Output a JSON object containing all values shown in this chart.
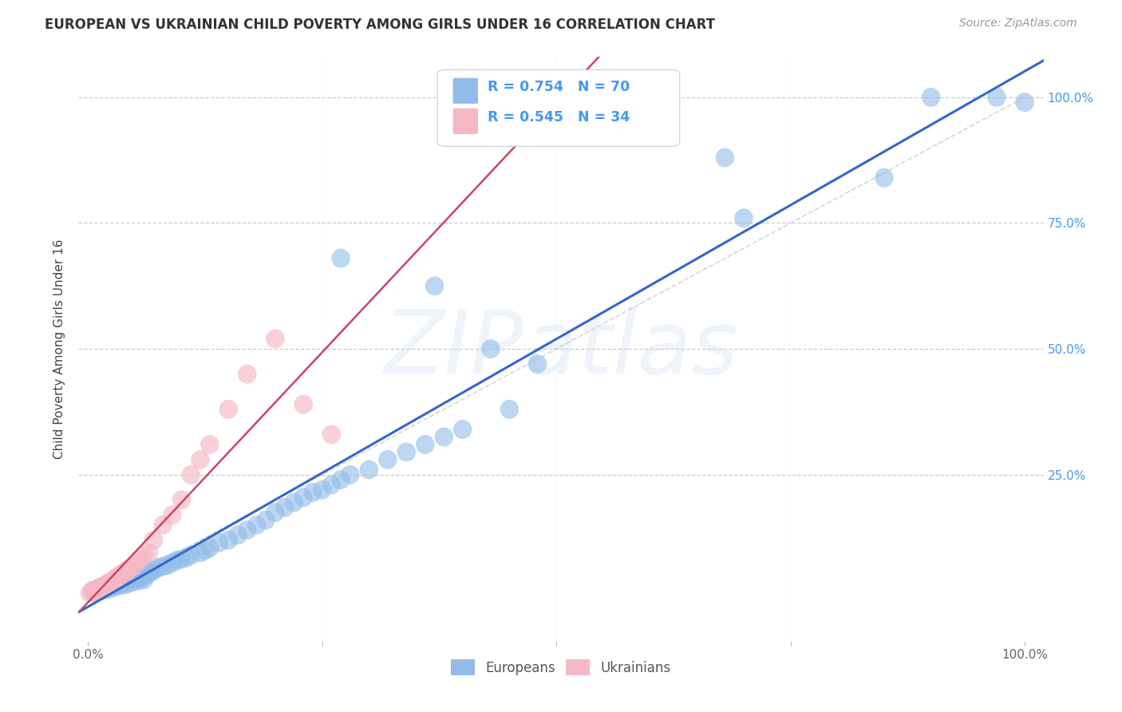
{
  "title": "EUROPEAN VS UKRAINIAN CHILD POVERTY AMONG GIRLS UNDER 16 CORRELATION CHART",
  "source": "Source: ZipAtlas.com",
  "ylabel": "Child Poverty Among Girls Under 16",
  "background_color": "#ffffff",
  "grid_color": "#cccccc",
  "watermark_text": "ZIPatlas",
  "legend_r1": "0.754",
  "legend_n1": "70",
  "legend_r2": "0.545",
  "legend_n2": "34",
  "blue_color": "#92bce8",
  "pink_color": "#f5b8c4",
  "line_blue": "#3366cc",
  "line_pink": "#cc4466",
  "ref_line_color": "#cccccc",
  "right_tick_color": "#4499ee",
  "ytick_labels": [
    "100.0%",
    "75.0%",
    "50.0%",
    "25.0%"
  ],
  "ytick_vals": [
    1.0,
    0.75,
    0.5,
    0.25
  ],
  "xtick_labels": [
    "0.0%",
    "100.0%"
  ],
  "eu_x": [
    0.005,
    0.008,
    0.01,
    0.012,
    0.015,
    0.018,
    0.02,
    0.022,
    0.025,
    0.028,
    0.03,
    0.032,
    0.035,
    0.038,
    0.04,
    0.042,
    0.045,
    0.048,
    0.05,
    0.052,
    0.055,
    0.058,
    0.06,
    0.062,
    0.065,
    0.068,
    0.07,
    0.075,
    0.08,
    0.085,
    0.09,
    0.095,
    0.1,
    0.105,
    0.11,
    0.12,
    0.125,
    0.13,
    0.14,
    0.15,
    0.16,
    0.17,
    0.18,
    0.19,
    0.2,
    0.21,
    0.22,
    0.23,
    0.24,
    0.25,
    0.26,
    0.27,
    0.28,
    0.3,
    0.32,
    0.34,
    0.36,
    0.38,
    0.4,
    0.45,
    0.27,
    0.37,
    0.43,
    0.48,
    0.68,
    0.7,
    0.85,
    0.9,
    0.97,
    1.0
  ],
  "eu_y": [
    0.02,
    0.015,
    0.018,
    0.025,
    0.02,
    0.028,
    0.022,
    0.03,
    0.025,
    0.032,
    0.028,
    0.035,
    0.03,
    0.038,
    0.032,
    0.04,
    0.035,
    0.042,
    0.038,
    0.045,
    0.04,
    0.048,
    0.042,
    0.05,
    0.055,
    0.058,
    0.06,
    0.065,
    0.068,
    0.07,
    0.075,
    0.08,
    0.082,
    0.085,
    0.09,
    0.095,
    0.1,
    0.105,
    0.115,
    0.12,
    0.13,
    0.14,
    0.15,
    0.16,
    0.175,
    0.185,
    0.195,
    0.205,
    0.215,
    0.22,
    0.23,
    0.24,
    0.25,
    0.26,
    0.28,
    0.295,
    0.31,
    0.325,
    0.34,
    0.38,
    0.68,
    0.625,
    0.5,
    0.47,
    0.88,
    0.76,
    0.84,
    1.0,
    1.0,
    0.99
  ],
  "uk_x": [
    0.002,
    0.005,
    0.008,
    0.01,
    0.012,
    0.015,
    0.018,
    0.02,
    0.022,
    0.025,
    0.028,
    0.03,
    0.032,
    0.035,
    0.038,
    0.04,
    0.042,
    0.045,
    0.05,
    0.055,
    0.06,
    0.065,
    0.07,
    0.08,
    0.09,
    0.1,
    0.11,
    0.12,
    0.13,
    0.15,
    0.17,
    0.2,
    0.23,
    0.26
  ],
  "uk_y": [
    0.015,
    0.018,
    0.02,
    0.022,
    0.025,
    0.028,
    0.03,
    0.032,
    0.035,
    0.038,
    0.042,
    0.045,
    0.048,
    0.052,
    0.055,
    0.058,
    0.06,
    0.065,
    0.07,
    0.08,
    0.09,
    0.095,
    0.12,
    0.15,
    0.17,
    0.2,
    0.25,
    0.28,
    0.31,
    0.38,
    0.45,
    0.52,
    0.39,
    0.33
  ]
}
